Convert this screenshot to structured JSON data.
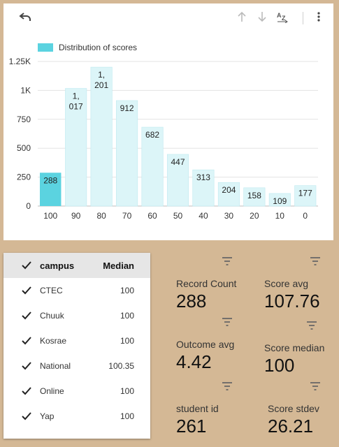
{
  "chart_data": {
    "type": "bar",
    "categories": [
      "100",
      "90",
      "80",
      "70",
      "60",
      "50",
      "40",
      "30",
      "20",
      "10",
      "0"
    ],
    "values": [
      288,
      1017,
      1201,
      912,
      682,
      447,
      313,
      204,
      158,
      109,
      177
    ],
    "data_labels": [
      [
        "288"
      ],
      [
        "1,",
        "017"
      ],
      [
        "1,",
        "201"
      ],
      [
        "912"
      ],
      [
        "682"
      ],
      [
        "447"
      ],
      [
        "313"
      ],
      [
        "204"
      ],
      [
        "158"
      ],
      [
        "109"
      ],
      [
        "177"
      ]
    ],
    "highlight_index": 0,
    "legend": "Distribution of scores",
    "yticks": [
      "0",
      "250",
      "500",
      "750",
      "1K",
      "1.25K"
    ],
    "ytick_values": [
      0,
      250,
      500,
      750,
      1000,
      1250
    ],
    "ylim": [
      0,
      1250
    ],
    "grid": true,
    "colors": {
      "highlight": "#5bd3e0",
      "bar": "#dcf5f8",
      "bar_border": "#bfeaf0"
    }
  },
  "toolbar": {
    "undo_icon": "undo-icon",
    "sort_up_icon": "arrow-up-icon",
    "sort_down_icon": "arrow-down-icon",
    "sort_az_icon": "sort-az-icon",
    "more_icon": "more-vert-icon"
  },
  "table": {
    "header": {
      "campus": "campus",
      "median": "Median"
    },
    "rows": [
      {
        "campus": "CTEC",
        "median": "100"
      },
      {
        "campus": "Chuuk",
        "median": "100"
      },
      {
        "campus": "Kosrae",
        "median": "100"
      },
      {
        "campus": "National",
        "median": "100.35"
      },
      {
        "campus": "Online",
        "median": "100"
      },
      {
        "campus": "Yap",
        "median": "100"
      }
    ]
  },
  "metrics": {
    "record_count": {
      "label": "Record Count",
      "value": "288"
    },
    "score_avg": {
      "label": "Score avg",
      "value": "107.76"
    },
    "outcome_avg": {
      "label": "Outcome avg",
      "value": "4.42"
    },
    "score_median": {
      "label": "Score median",
      "value": "100"
    },
    "student_id": {
      "label": "student id",
      "value": "261"
    },
    "score_stdev": {
      "label": "Score stdev",
      "value": "26.21"
    }
  }
}
